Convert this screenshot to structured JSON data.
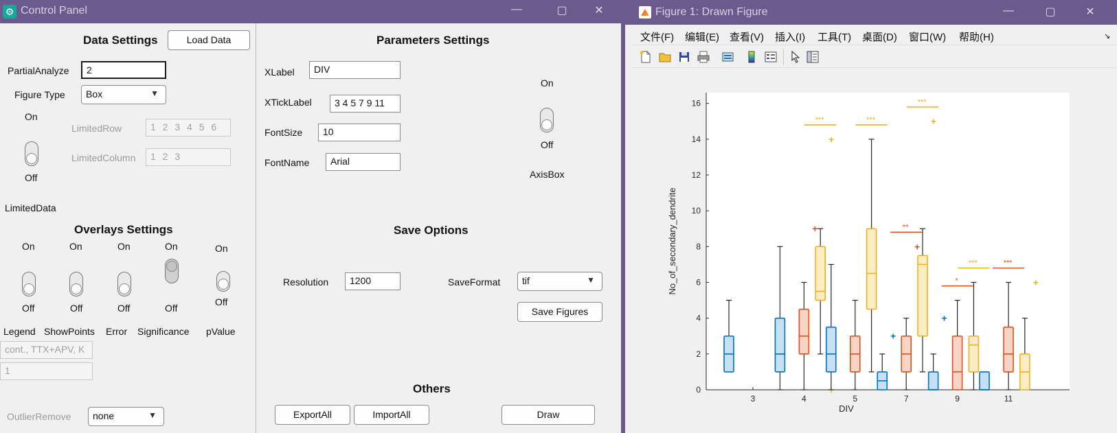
{
  "control_panel": {
    "title": "Control Panel",
    "window_buttons": {
      "minimize": "—",
      "maximize": "▢",
      "close": "✕"
    },
    "data_settings": {
      "header": "Data Settings",
      "load_button": "Load Data",
      "partial_analyze_label": "PartialAnalyze",
      "partial_analyze_value": "2",
      "figure_type_label": "Figure Type",
      "figure_type_value": "Box",
      "switch_on": "On",
      "switch_off": "Off",
      "limited_row_label": "LimitedRow",
      "limited_row_value": "1 2 3 4 5 6",
      "limited_column_label": "LimitedColumn",
      "limited_column_value": "1 2 3",
      "limited_data_label": "LimitedData"
    },
    "overlays": {
      "header": "Overlays Settings",
      "switches": [
        {
          "on": "On",
          "off": "Off",
          "label": "Legend"
        },
        {
          "on": "On",
          "off": "Off",
          "label": "ShowPoints"
        },
        {
          "on": "On",
          "off": "Off",
          "label": "Error"
        },
        {
          "on": "On",
          "off": "Off",
          "label": "Significance"
        },
        {
          "on": "On",
          "off": "Off",
          "label": "pValue"
        }
      ],
      "field1": "cont., TTX+APV, K",
      "field2": "1",
      "outlier_label": "OutlierRemove",
      "outlier_value": "none"
    },
    "parameters": {
      "header": "Parameters Settings",
      "xlabel_label": "XLabel",
      "xlabel_value": "DIV",
      "xticklabel_label": "XTickLabel",
      "xticklabel_value": "3 4 5 7 9 11",
      "fontsize_label": "FontSize",
      "fontsize_value": "10",
      "fontname_label": "FontName",
      "fontname_value": "Arial",
      "axisbox_on": "On",
      "axisbox_off": "Off",
      "axisbox_label": "AxisBox"
    },
    "save": {
      "header": "Save Options",
      "resolution_label": "Resolution",
      "resolution_value": "1200",
      "format_label": "SaveFormat",
      "format_value": "tif",
      "save_button": "Save Figures"
    },
    "others": {
      "header": "Others",
      "export_button": "ExportAll",
      "import_button": "ImportAll",
      "draw_button": "Draw"
    }
  },
  "figure": {
    "title": "Figure 1: Drawn Figure",
    "window_buttons": {
      "minimize": "—",
      "maximize": "▢",
      "close": "✕"
    },
    "menu": [
      "文件(F)",
      "编辑(E)",
      "查看(V)",
      "插入(I)",
      "工具(T)",
      "桌面(D)",
      "窗口(W)",
      "帮助(H)"
    ],
    "toolbar_icons": [
      "new-file-icon",
      "open-folder-icon",
      "save-icon",
      "print-icon",
      "print-preview-icon",
      "colorbar-icon",
      "legend-icon",
      "pointer-icon",
      "property-inspector-icon"
    ]
  },
  "chart_data": {
    "type": "box",
    "xlabel": "DIV",
    "ylabel": "No_of_secondary_dendrite",
    "categories": [
      "3",
      "4",
      "5",
      "7",
      "9",
      "11"
    ],
    "ylim": [
      0,
      16.6
    ],
    "yticks": [
      0,
      2,
      4,
      6,
      8,
      10,
      12,
      14,
      16
    ],
    "colors": {
      "blue": "#0072BD",
      "orange": "#D95319",
      "yellow": "#EDB120"
    },
    "boxes": [
      {
        "category": "3",
        "series": "blue",
        "whisker_low": 1,
        "q1": 1,
        "median": 2,
        "q3": 3,
        "whisker_high": 5,
        "outliers": []
      },
      {
        "category": "4",
        "series": "blue",
        "whisker_low": 0,
        "q1": 1,
        "median": 2,
        "q3": 4,
        "whisker_high": 8,
        "outliers": []
      },
      {
        "category": "4",
        "series": "orange",
        "whisker_low": 0,
        "q1": 2,
        "median": 3,
        "q3": 4.5,
        "whisker_high": 6,
        "outliers": [
          9
        ]
      },
      {
        "category": "4",
        "series": "yellow",
        "whisker_low": 2,
        "q1": 5,
        "median": 5.5,
        "q3": 8,
        "whisker_high": 9,
        "outliers": [
          14,
          0
        ]
      },
      {
        "category": "5",
        "series": "blue",
        "whisker_low": 0,
        "q1": 1,
        "median": 2,
        "q3": 3.5,
        "whisker_high": 7,
        "outliers": []
      },
      {
        "category": "5",
        "series": "orange",
        "whisker_low": 0,
        "q1": 1,
        "median": 2,
        "q3": 3,
        "whisker_high": 5,
        "outliers": []
      },
      {
        "category": "5",
        "series": "yellow",
        "whisker_low": 1,
        "q1": 4.5,
        "median": 6.5,
        "q3": 9,
        "whisker_high": 14,
        "outliers": []
      },
      {
        "category": "7",
        "series": "blue",
        "whisker_low": 0,
        "q1": 0,
        "median": 0.5,
        "q3": 1,
        "whisker_high": 2,
        "outliers": [
          3
        ]
      },
      {
        "category": "7",
        "series": "orange",
        "whisker_low": 0,
        "q1": 1,
        "median": 2,
        "q3": 3,
        "whisker_high": 4,
        "outliers": [
          8
        ]
      },
      {
        "category": "7",
        "series": "yellow",
        "whisker_low": 1,
        "q1": 3,
        "median": 7,
        "q3": 7.5,
        "whisker_high": 9,
        "outliers": [
          15
        ]
      },
      {
        "category": "9",
        "series": "blue",
        "whisker_low": 0,
        "q1": 0,
        "median": 0,
        "q3": 1,
        "whisker_high": 2,
        "outliers": [
          4
        ]
      },
      {
        "category": "9",
        "series": "orange",
        "whisker_low": 0,
        "q1": 0,
        "median": 1,
        "q3": 3,
        "whisker_high": 5,
        "outliers": []
      },
      {
        "category": "9",
        "series": "yellow",
        "whisker_low": 0,
        "q1": 1,
        "median": 2.5,
        "q3": 3,
        "whisker_high": 6,
        "outliers": []
      },
      {
        "category": "11",
        "series": "blue",
        "whisker_low": 0,
        "q1": 0,
        "median": 0,
        "q3": 1,
        "whisker_high": 1,
        "outliers": []
      },
      {
        "category": "11",
        "series": "orange",
        "whisker_low": 0,
        "q1": 1,
        "median": 2,
        "q3": 3.5,
        "whisker_high": 6,
        "outliers": []
      },
      {
        "category": "11",
        "series": "yellow",
        "whisker_low": 0,
        "q1": 0,
        "median": 1,
        "q3": 2,
        "whisker_high": 4,
        "outliers": [
          6
        ]
      }
    ],
    "significance": [
      {
        "category": "4",
        "series": "yellow",
        "level": 14.8,
        "stars": "***"
      },
      {
        "category": "5",
        "series": "yellow",
        "level": 14.8,
        "stars": "***"
      },
      {
        "category": "7",
        "series": "yellow",
        "level": 15.8,
        "stars": "***"
      },
      {
        "category": "7",
        "series": "orange",
        "level": 8.8,
        "stars": "**"
      },
      {
        "category": "9",
        "series": "yellow",
        "level": 6.8,
        "stars": "***"
      },
      {
        "category": "9",
        "series": "orange",
        "level": 5.8,
        "stars": "*"
      },
      {
        "category": "11",
        "series": "orange",
        "level": 6.8,
        "stars": "***"
      }
    ]
  }
}
